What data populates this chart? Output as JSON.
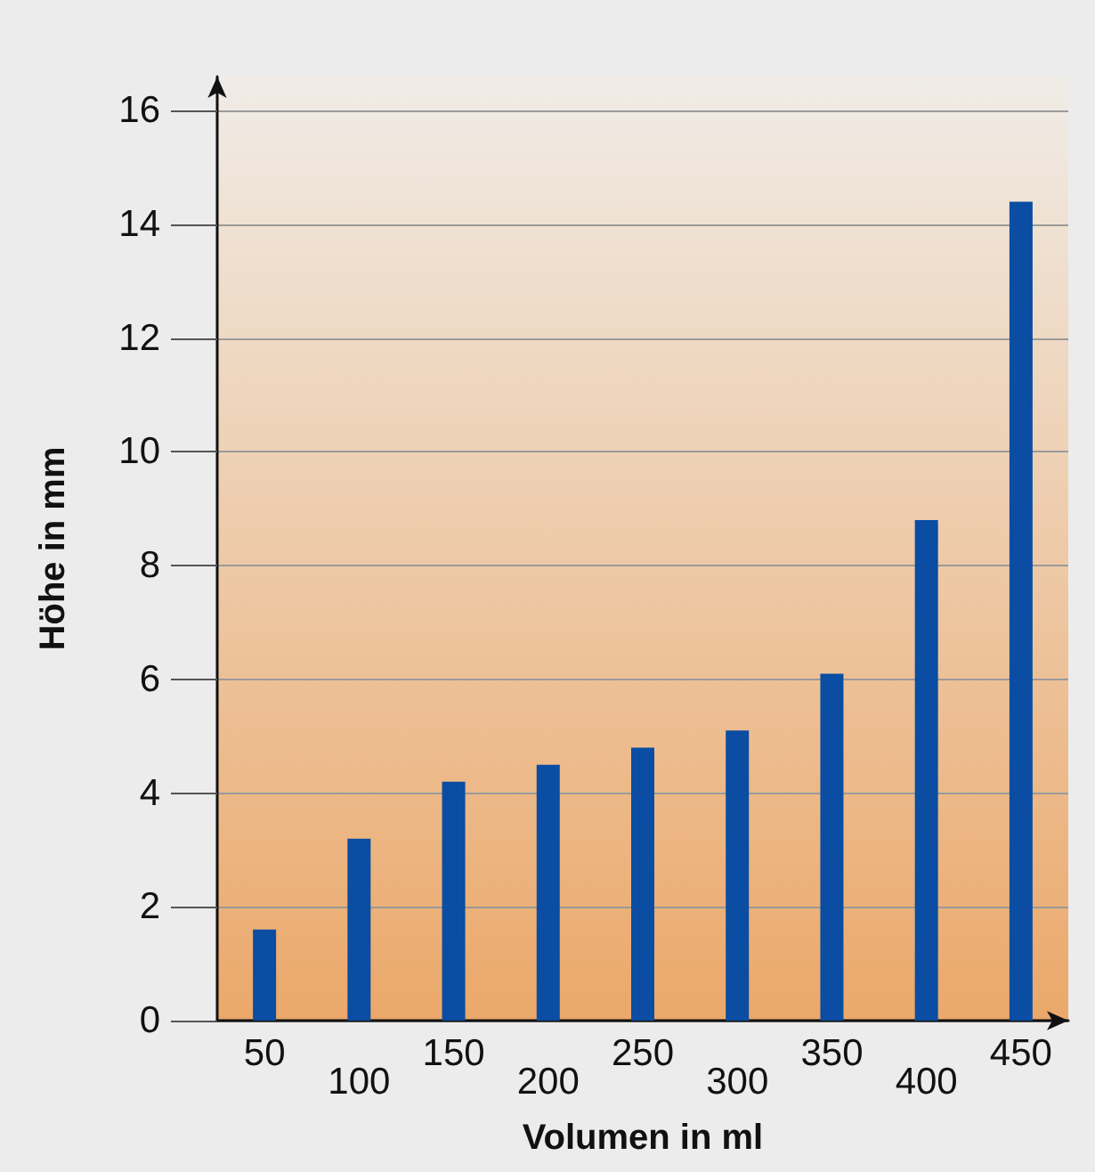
{
  "chart_data": {
    "type": "bar",
    "xlabel": "Volumen in ml",
    "ylabel": "Höhe in mm",
    "categories": [
      "50",
      "100",
      "150",
      "200",
      "250",
      "300",
      "350",
      "400",
      "450"
    ],
    "values": [
      1.6,
      3.2,
      4.2,
      4.5,
      4.8,
      5.1,
      6.1,
      8.8,
      14.4
    ],
    "color": "#0a4da2",
    "ylim": [
      0,
      16.6
    ],
    "yticks": [
      0,
      2,
      4,
      6,
      8,
      10,
      12,
      14,
      16
    ],
    "grid": "y"
  }
}
